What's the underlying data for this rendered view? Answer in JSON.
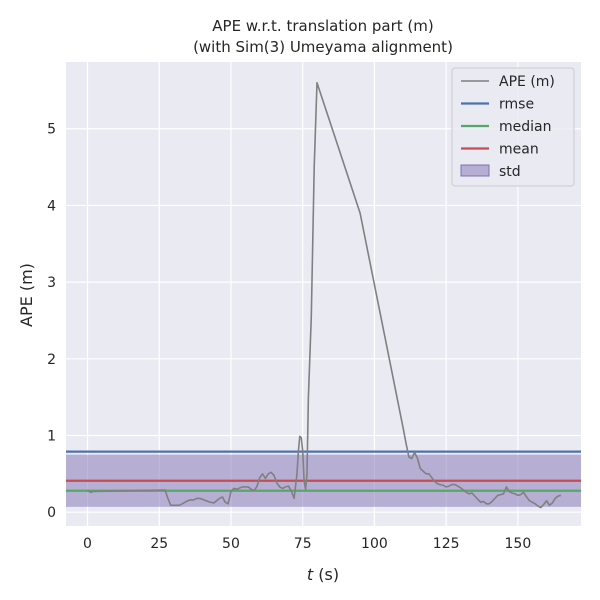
{
  "chart_data": {
    "type": "line",
    "title": "APE w.r.t. translation part (m)",
    "subtitle": "(with Sim(3) Umeyama alignment)",
    "xlabel_italic": "t",
    "xlabel_unit": " (s)",
    "ylabel": "APE (m)",
    "xlim": [
      -7.5,
      172
    ],
    "ylim": [
      -0.18,
      5.87
    ],
    "xticks": [
      0,
      25,
      50,
      75,
      100,
      125,
      150
    ],
    "yticks": [
      0,
      1,
      2,
      3,
      4,
      5
    ],
    "grid": true,
    "legend_position": "top-right",
    "colors": {
      "background": "#eaeaf2",
      "grid": "#ffffff",
      "ape": "#808080",
      "rmse": "#4c72b0",
      "median": "#55a868",
      "mean": "#c44e52",
      "std": "#8172b3"
    },
    "stats": {
      "rmse": 0.79,
      "median": 0.28,
      "mean": 0.41,
      "std_low": 0.07,
      "std_high": 0.75
    },
    "series": [
      {
        "name": "APE (m)",
        "x": [
          0,
          1,
          2,
          27,
          28,
          29,
          30,
          32,
          33,
          34,
          35,
          36,
          37,
          38,
          39,
          40,
          42,
          44,
          46,
          47,
          48,
          49,
          50,
          51,
          52,
          54,
          56,
          57,
          58,
          59,
          60,
          61,
          62,
          63,
          64,
          65,
          66,
          67,
          68,
          69,
          70,
          71,
          72,
          73,
          73.5,
          74,
          74.5,
          75,
          75.5,
          76,
          76.5,
          77,
          78,
          79,
          80,
          95,
          110,
          111,
          112,
          113,
          114,
          115,
          116,
          118,
          119,
          120,
          121,
          122,
          123,
          124,
          125,
          126,
          127,
          128,
          129,
          130,
          131,
          132,
          133,
          134,
          135,
          136,
          137,
          138,
          139,
          140,
          141,
          142,
          143,
          144,
          145,
          146,
          147,
          148,
          149,
          150,
          151,
          152,
          153,
          154,
          155,
          156,
          157,
          158,
          159,
          160,
          161,
          162,
          163,
          164,
          165
        ],
        "y": [
          0.29,
          0.26,
          0.27,
          0.29,
          0.18,
          0.09,
          0.09,
          0.09,
          0.11,
          0.13,
          0.15,
          0.16,
          0.16,
          0.18,
          0.18,
          0.17,
          0.14,
          0.12,
          0.18,
          0.2,
          0.13,
          0.11,
          0.27,
          0.31,
          0.3,
          0.33,
          0.33,
          0.3,
          0.28,
          0.33,
          0.45,
          0.5,
          0.44,
          0.5,
          0.52,
          0.48,
          0.38,
          0.33,
          0.31,
          0.33,
          0.34,
          0.28,
          0.18,
          0.5,
          0.8,
          0.99,
          0.97,
          0.8,
          0.4,
          0.3,
          0.5,
          1.5,
          2.55,
          4.5,
          5.6,
          3.9,
          1.1,
          0.9,
          0.72,
          0.7,
          0.78,
          0.7,
          0.57,
          0.5,
          0.5,
          0.45,
          0.4,
          0.37,
          0.36,
          0.35,
          0.33,
          0.34,
          0.36,
          0.36,
          0.34,
          0.32,
          0.29,
          0.26,
          0.24,
          0.25,
          0.21,
          0.17,
          0.13,
          0.14,
          0.11,
          0.11,
          0.14,
          0.18,
          0.22,
          0.23,
          0.24,
          0.33,
          0.27,
          0.25,
          0.24,
          0.22,
          0.23,
          0.26,
          0.2,
          0.15,
          0.13,
          0.11,
          0.08,
          0.06,
          0.1,
          0.15,
          0.09,
          0.12,
          0.18,
          0.21,
          0.22
        ]
      },
      {
        "name": "rmse"
      },
      {
        "name": "median"
      },
      {
        "name": "mean"
      },
      {
        "name": "std"
      }
    ]
  }
}
